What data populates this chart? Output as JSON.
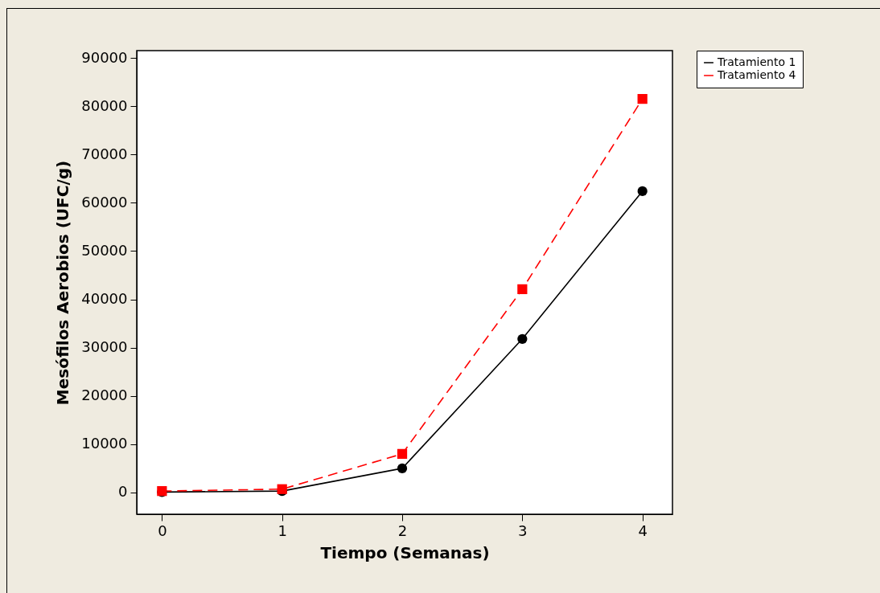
{
  "chart_data": {
    "type": "line",
    "xlabel": "Tiempo (Semanas)",
    "ylabel": "Mesófilos Aerobios (UFC/g)",
    "x": [
      0,
      1,
      2,
      3,
      4
    ],
    "series": [
      {
        "name": "Tratamiento 1",
        "color": "#000000",
        "marker": "circle",
        "line_style": "solid",
        "values": [
          100,
          300,
          5000,
          31800,
          62400
        ]
      },
      {
        "name": "Tratamiento 4",
        "color": "#ff0000",
        "marker": "square",
        "line_style": "dashed",
        "values": [
          300,
          700,
          8000,
          42100,
          81500
        ]
      }
    ],
    "xlim": [
      -0.21,
      4.25
    ],
    "xticks": [
      0,
      1,
      2,
      3,
      4
    ],
    "ylim": [
      -4500,
      91500
    ],
    "yticks": [
      0,
      10000,
      20000,
      30000,
      40000,
      50000,
      60000,
      70000,
      80000,
      90000
    ],
    "grid": false,
    "legend": "top right"
  }
}
